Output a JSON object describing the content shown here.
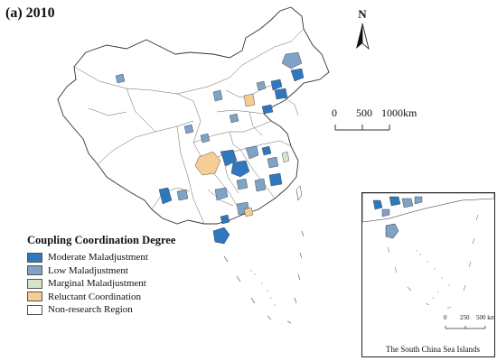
{
  "title": "(a) 2010",
  "north_arrow": {
    "label": "N"
  },
  "scale_bar": {
    "labels": [
      "0",
      "500",
      "1000km"
    ]
  },
  "legend": {
    "title": "Coupling Coordination Degree",
    "items": [
      {
        "label": "Moderate Maladjustment",
        "color": "#2f78bf",
        "icon": "swatch-moderate"
      },
      {
        "label": "Low Maladjustment",
        "color": "#7fa3c6",
        "icon": "swatch-low"
      },
      {
        "label": "Marginal Maladjustment",
        "color": "#d6e5c7",
        "icon": "swatch-marginal"
      },
      {
        "label": "Reluctant Coordination",
        "color": "#f5cd95",
        "icon": "swatch-reluctant"
      },
      {
        "label": "Non-research Region",
        "color": "#ffffff",
        "icon": "swatch-nonresearch"
      }
    ]
  },
  "inset": {
    "caption": "The South China Sea Islands",
    "scale_labels": [
      "0",
      "250",
      "500 km"
    ]
  }
}
